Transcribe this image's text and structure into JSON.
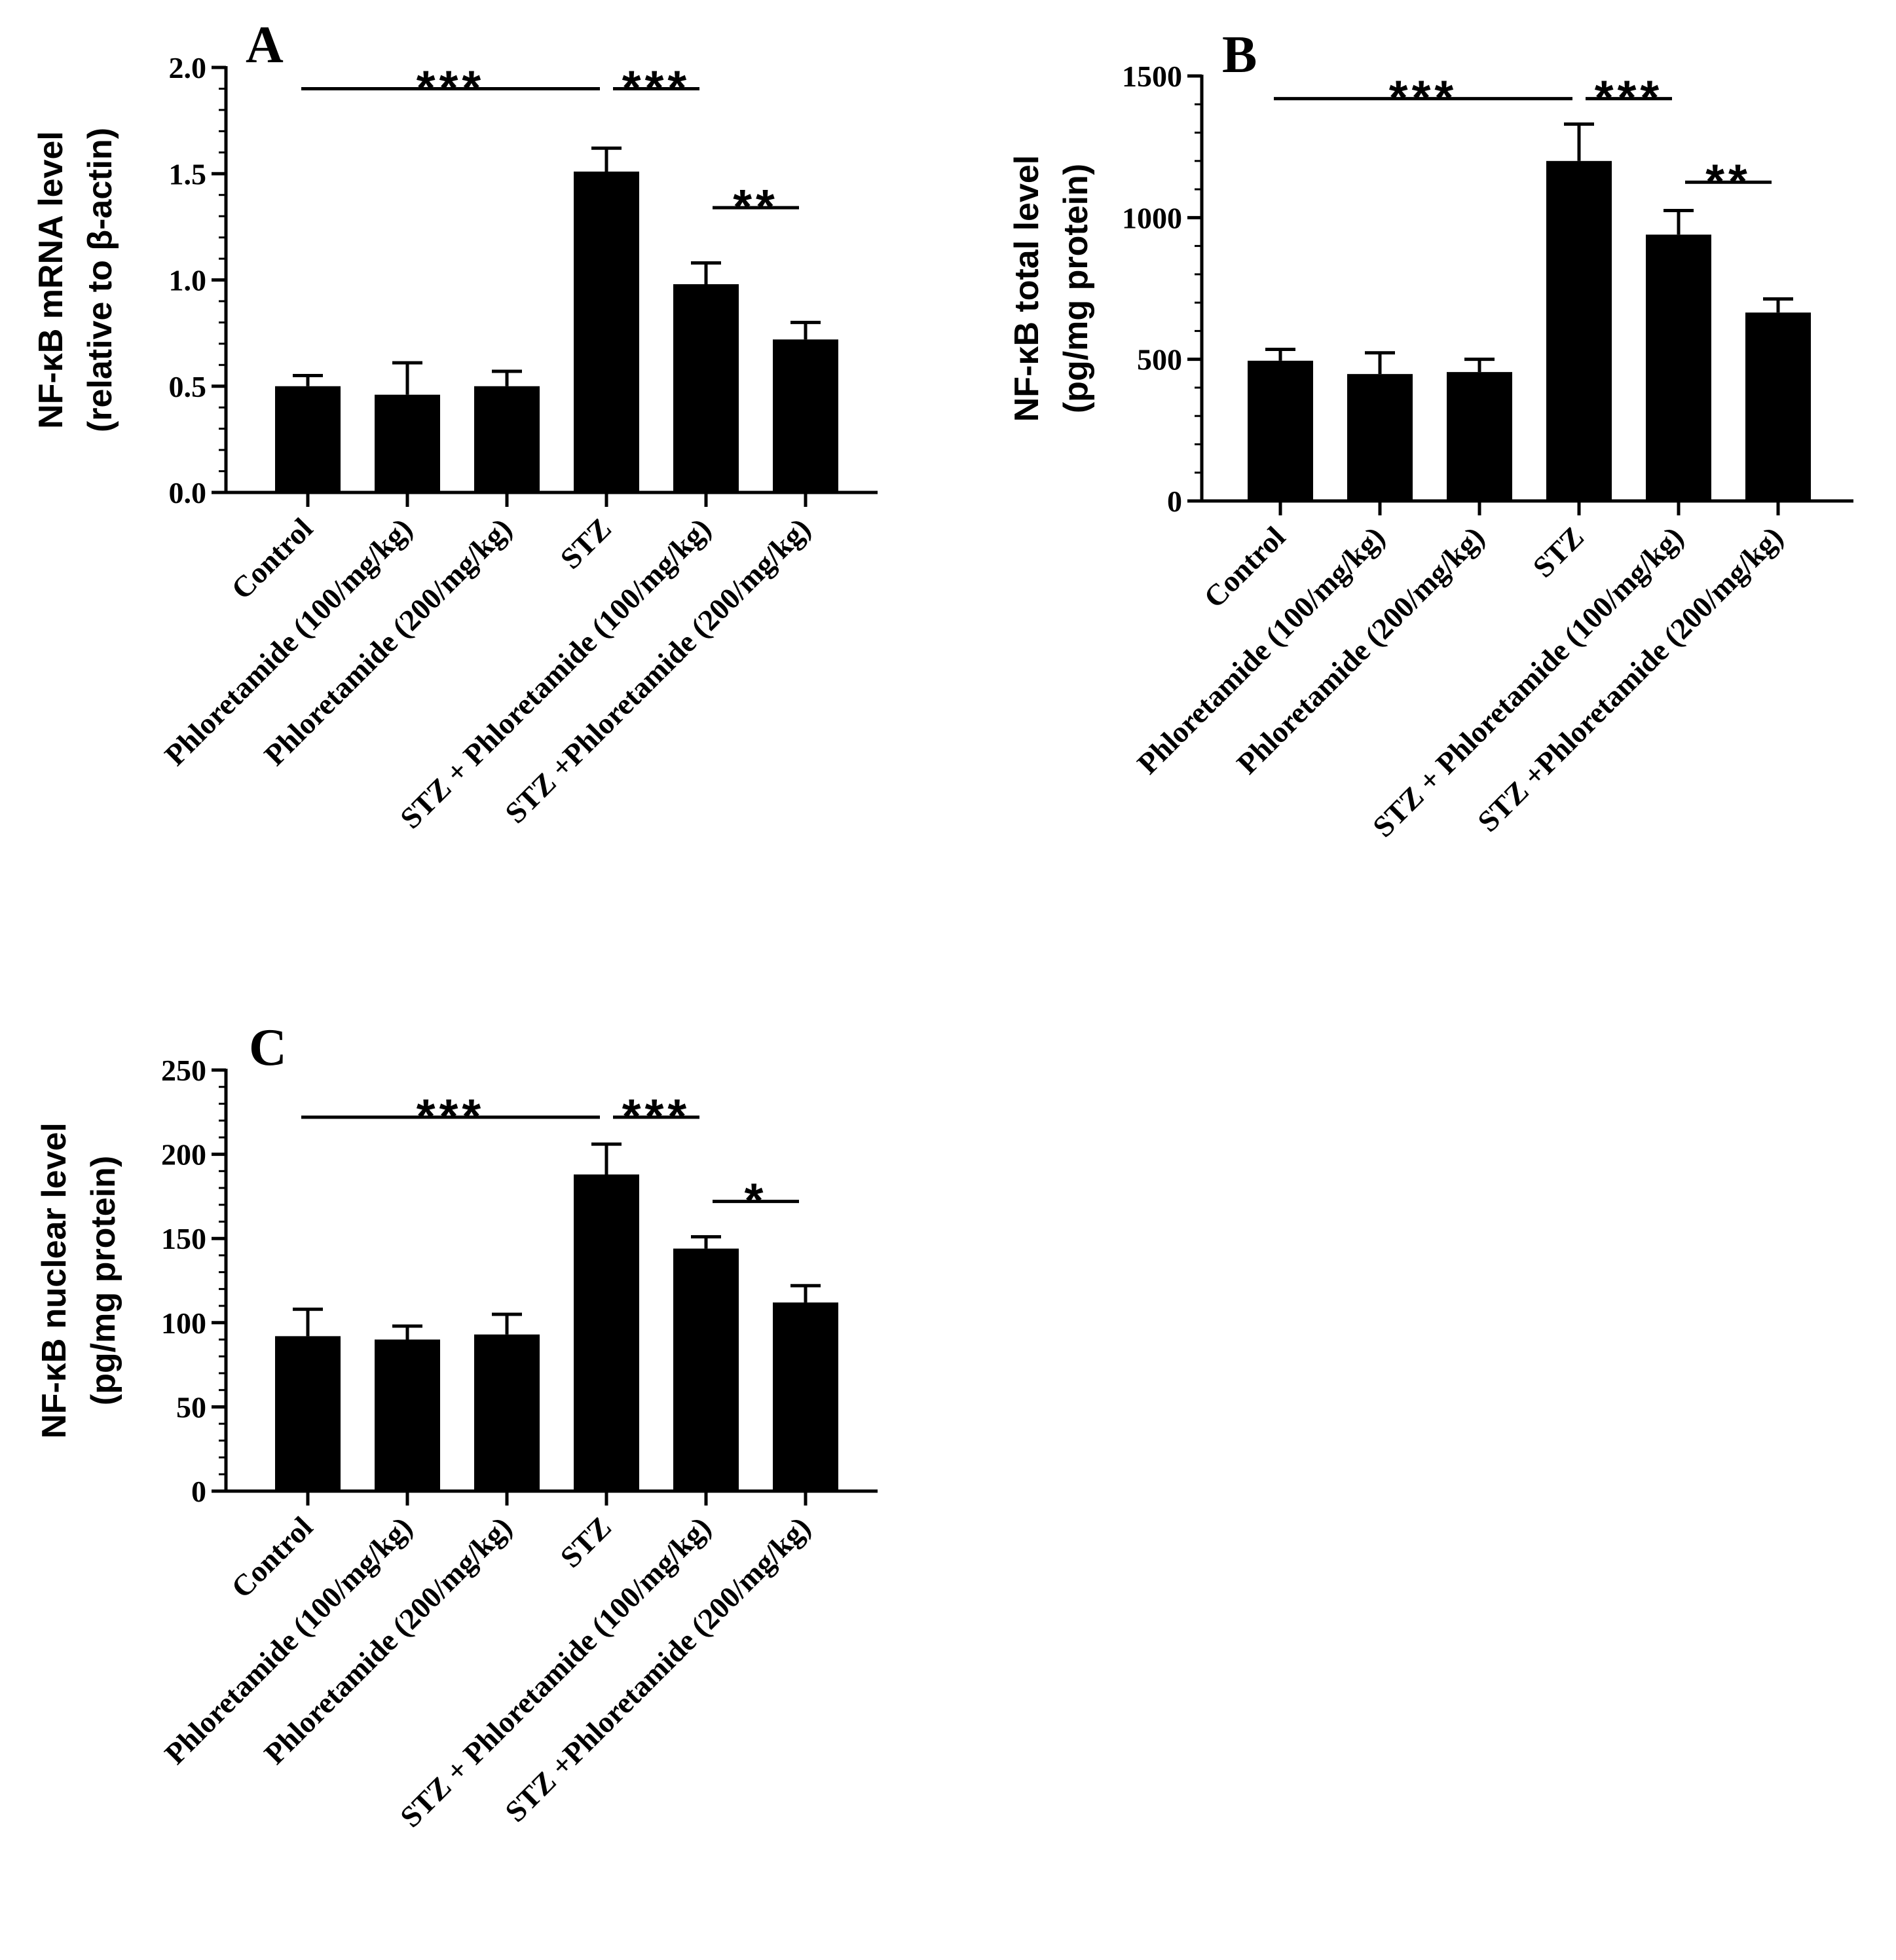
{
  "chart_data": [
    {
      "type": "bar",
      "panel": "A",
      "categories": [
        "Control",
        "Phloretamide (100/mg/kg)",
        "Phloretamide (200/mg/kg)",
        "STZ",
        "STZ + Phloretamide (100/mg/kg)",
        "STZ +Phloretamide (200/mg/kg)"
      ],
      "values": [
        0.5,
        0.46,
        0.5,
        1.51,
        0.98,
        0.72
      ],
      "errors": [
        0.05,
        0.15,
        0.07,
        0.11,
        0.1,
        0.08
      ],
      "ylabel": [
        "NF-κB mRNA level",
        "(relative to β-actin)"
      ],
      "ylim": [
        0,
        2.0
      ],
      "yticks": [
        "0.0",
        "0.5",
        "1.0",
        "1.5",
        "2.0"
      ],
      "ytick_values": [
        0,
        0.5,
        1.0,
        1.5,
        2.0
      ],
      "minor_per_major": 5,
      "significance": [
        {
          "from": 0,
          "to": 3,
          "label": "***",
          "y": 1.9
        },
        {
          "from": 3,
          "to": 4,
          "label": "***",
          "y": 1.9
        },
        {
          "from": 4,
          "to": 5,
          "label": "**",
          "y": 1.34
        }
      ]
    },
    {
      "type": "bar",
      "panel": "B",
      "categories": [
        "Control",
        "Phloretamide (100/mg/kg)",
        "Phloretamide (200/mg/kg)",
        "STZ",
        "STZ + Phloretamide (100/mg/kg)",
        "STZ +Phloretamide (200/mg/kg)"
      ],
      "values": [
        495,
        448,
        455,
        1200,
        940,
        665
      ],
      "errors": [
        40,
        75,
        45,
        130,
        85,
        48
      ],
      "ylabel": [
        "NF-κB total level",
        "(pg/mg protein)"
      ],
      "ylim": [
        0,
        1500
      ],
      "yticks": [
        "0",
        "500",
        "1000",
        "1500"
      ],
      "ytick_values": [
        0,
        500,
        1000,
        1500
      ],
      "minor_per_major": 5,
      "significance": [
        {
          "from": 0,
          "to": 3,
          "label": "***",
          "y": 1420
        },
        {
          "from": 3,
          "to": 4,
          "label": "***",
          "y": 1420
        },
        {
          "from": 4,
          "to": 5,
          "label": "**",
          "y": 1125
        }
      ]
    },
    {
      "type": "bar",
      "panel": "C",
      "categories": [
        "Control",
        "Phloretamide (100/mg/kg)",
        "Phloretamide (200/mg/kg)",
        "STZ",
        "STZ + Phloretamide (100/mg/kg)",
        "STZ +Phloretamide (200/mg/kg)"
      ],
      "values": [
        92,
        90,
        93,
        188,
        144,
        112
      ],
      "errors": [
        16,
        8,
        12,
        18,
        7,
        10
      ],
      "ylabel": [
        "NF-κB nuclear level",
        "(pg/mg protein)"
      ],
      "ylim": [
        0,
        250
      ],
      "yticks": [
        "0",
        "50",
        "100",
        "150",
        "200",
        "250"
      ],
      "ytick_values": [
        0,
        50,
        100,
        150,
        200,
        250
      ],
      "minor_per_major": 5,
      "significance": [
        {
          "from": 0,
          "to": 3,
          "label": "***",
          "y": 222
        },
        {
          "from": 3,
          "to": 4,
          "label": "***",
          "y": 222
        },
        {
          "from": 4,
          "to": 5,
          "label": "*",
          "y": 172
        }
      ]
    }
  ]
}
